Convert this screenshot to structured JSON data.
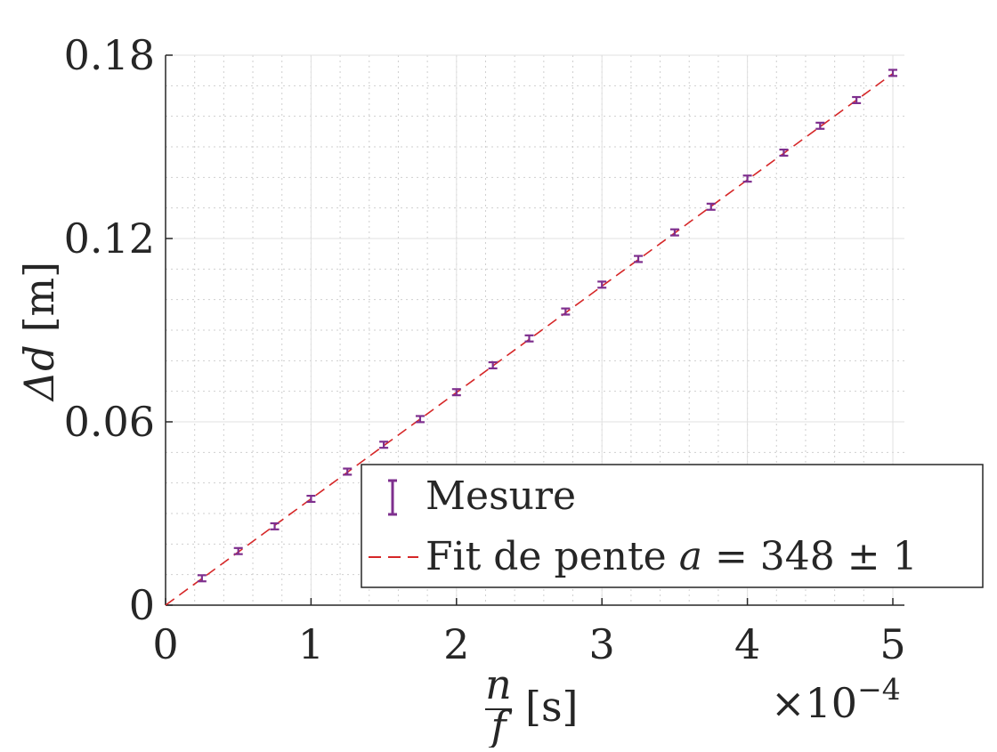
{
  "chart_data": {
    "type": "scatter",
    "title": "",
    "xlabel": {
      "fraction_num": "n",
      "fraction_den": "f",
      "unit": "[s]"
    },
    "ylabel": {
      "symbol": "Δd",
      "unit": "[m]"
    },
    "x_multiplier": "×10",
    "x_multiplier_exponent": "−4",
    "xlim": [
      0,
      0.0005
    ],
    "ylim": [
      0,
      0.18
    ],
    "x_ticks": [
      0,
      0.0001,
      0.0002,
      0.0003,
      0.0004,
      0.0005
    ],
    "x_tick_labels": [
      "0",
      "1",
      "2",
      "3",
      "4",
      "5"
    ],
    "y_ticks": [
      0,
      0.06,
      0.12,
      0.18
    ],
    "y_tick_labels": [
      "0",
      "0.06",
      "0.12",
      "0.18"
    ],
    "grid": true,
    "minor_grid": true,
    "legend_position": "bottom-right",
    "series": [
      {
        "name": "Mesure",
        "kind": "errorbar",
        "color": "#7e2f8e",
        "x": [
          2.5e-05,
          5e-05,
          7.5e-05,
          0.0001,
          0.000125,
          0.00015,
          0.000175,
          0.0002,
          0.000225,
          0.00025,
          0.000275,
          0.0003,
          0.000325,
          0.00035,
          0.000375,
          0.0004,
          0.000425,
          0.00045,
          0.000475,
          0.0005
        ],
        "y": [
          0.0088,
          0.0177,
          0.0258,
          0.0348,
          0.0437,
          0.0525,
          0.0609,
          0.0697,
          0.0785,
          0.0873,
          0.0961,
          0.1049,
          0.1133,
          0.122,
          0.1304,
          0.1396,
          0.1481,
          0.1569,
          0.1653,
          0.1742
        ],
        "error": [
          0.001,
          0.001,
          0.001,
          0.001,
          0.001,
          0.001,
          0.001,
          0.001,
          0.001,
          0.001,
          0.001,
          0.001,
          0.001,
          0.001,
          0.001,
          0.001,
          0.001,
          0.001,
          0.001,
          0.001
        ]
      },
      {
        "name": "Fit de pente a = 348 ± 1",
        "kind": "line",
        "style": "dashed",
        "color": "#d62728",
        "x": [
          0,
          0.0005
        ],
        "y": [
          0,
          0.174
        ]
      }
    ]
  },
  "legend": {
    "entries": [
      {
        "text": "Mesure"
      },
      {
        "prefix": "Fit de pente ",
        "var": "a",
        "suffix": " = 348 ± 1"
      }
    ]
  }
}
